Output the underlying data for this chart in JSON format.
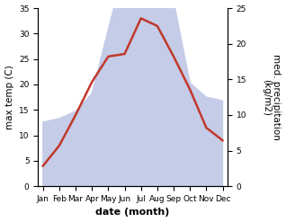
{
  "months": [
    "Jan",
    "Feb",
    "Mar",
    "Apr",
    "May",
    "Jun",
    "Jul",
    "Aug",
    "Sep",
    "Oct",
    "Nov",
    "Dec"
  ],
  "temp_max": [
    4.0,
    8.0,
    14.0,
    20.5,
    25.5,
    26.0,
    33.0,
    31.5,
    25.5,
    19.0,
    11.5,
    9.0
  ],
  "precipitation": [
    9.0,
    9.5,
    10.5,
    13.0,
    22.0,
    31.0,
    28.0,
    34.0,
    26.0,
    14.5,
    12.5,
    12.0
  ],
  "temp_color": "#c0392b",
  "precip_fill_color": "#c5cce8",
  "precip_fill_edge": "#b0bada",
  "xlabel": "date (month)",
  "ylabel_left": "max temp (C)",
  "ylabel_right": "med. precipitation\n(kg/m2)",
  "temp_ylim": [
    0,
    35
  ],
  "temp_yticks": [
    0,
    5,
    10,
    15,
    20,
    25,
    30,
    35
  ],
  "precip_ylim": [
    0,
    25
  ],
  "precip_yticks": [
    0,
    5,
    10,
    15,
    20,
    25
  ],
  "line_width": 1.8,
  "tick_fontsize": 6.5,
  "label_fontsize": 7.5,
  "xlabel_fontsize": 8
}
